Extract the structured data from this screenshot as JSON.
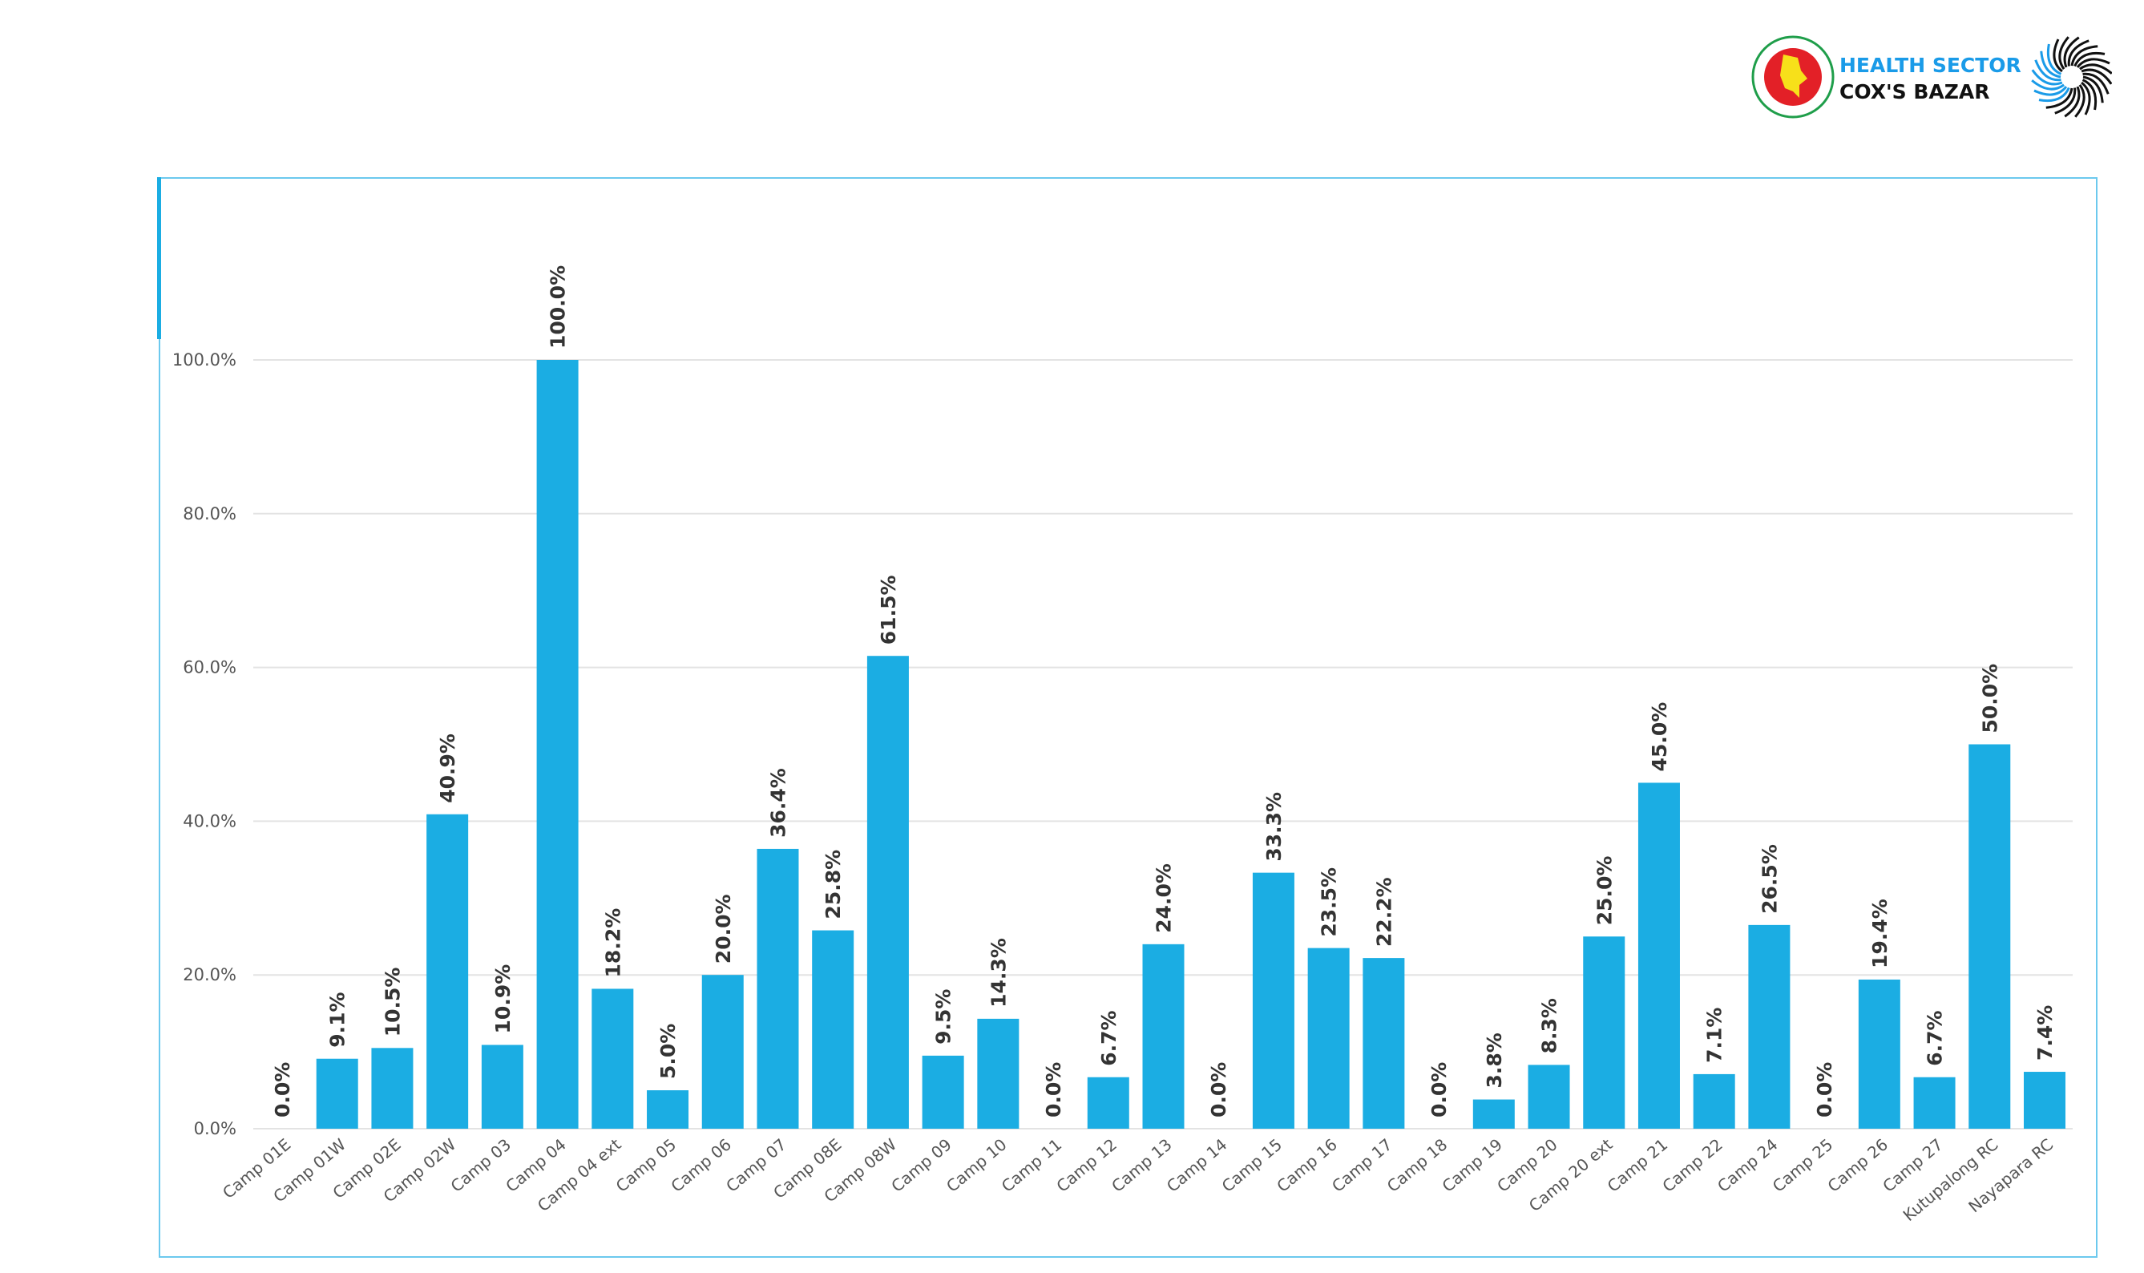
{
  "logo": {
    "line1": "HEALTH SECTOR",
    "line2": "COX'S BAZAR",
    "colors": {
      "line1": "#1a9be8",
      "line2": "#111111"
    }
  },
  "chart_data": {
    "type": "bar",
    "categories": [
      "Camp 01E",
      "Camp 01W",
      "Camp 02E",
      "Camp 02W",
      "Camp 03",
      "Camp 04",
      "Camp 04 ext",
      "Camp 05",
      "Camp 06",
      "Camp 07",
      "Camp 08E",
      "Camp 08W",
      "Camp 09",
      "Camp 10",
      "Camp 11",
      "Camp 12",
      "Camp 13",
      "Camp 14",
      "Camp 15",
      "Camp 16",
      "Camp 17",
      "Camp 18",
      "Camp 19",
      "Camp 20",
      "Camp 20 ext",
      "Camp 21",
      "Camp 22",
      "Camp 24",
      "Camp 25",
      "Camp 26",
      "Camp 27",
      "Kutupalong RC",
      "Nayapara RC"
    ],
    "values": [
      0.0,
      9.1,
      10.5,
      40.9,
      10.9,
      100.0,
      18.2,
      5.0,
      20.0,
      36.4,
      25.8,
      61.5,
      9.5,
      14.3,
      0.0,
      6.7,
      24.0,
      0.0,
      33.3,
      23.5,
      22.2,
      0.0,
      3.8,
      8.3,
      25.0,
      45.0,
      7.1,
      26.5,
      0.0,
      19.4,
      6.7,
      50.0,
      7.4
    ],
    "data_labels": [
      "0.0%",
      "9.1%",
      "10.5%",
      "40.9%",
      "10.9%",
      "100.0%",
      "18.2%",
      "5.0%",
      "20.0%",
      "36.4%",
      "25.8%",
      "61.5%",
      "9.5%",
      "14.3%",
      "0.0%",
      "6.7%",
      "24.0%",
      "0.0%",
      "33.3%",
      "23.5%",
      "22.2%",
      "0.0%",
      "3.8%",
      "8.3%",
      "25.0%",
      "45.0%",
      "7.1%",
      "26.5%",
      "0.0%",
      "19.4%",
      "6.7%",
      "50.0%",
      "7.4%"
    ],
    "yticks": [
      "0.0%",
      "20.0%",
      "40.0%",
      "60.0%",
      "80.0%",
      "100.0%"
    ],
    "ylim": [
      0,
      100
    ],
    "grid": true,
    "bar_color": "#1badE3",
    "title": "",
    "xlabel": "",
    "ylabel": ""
  }
}
